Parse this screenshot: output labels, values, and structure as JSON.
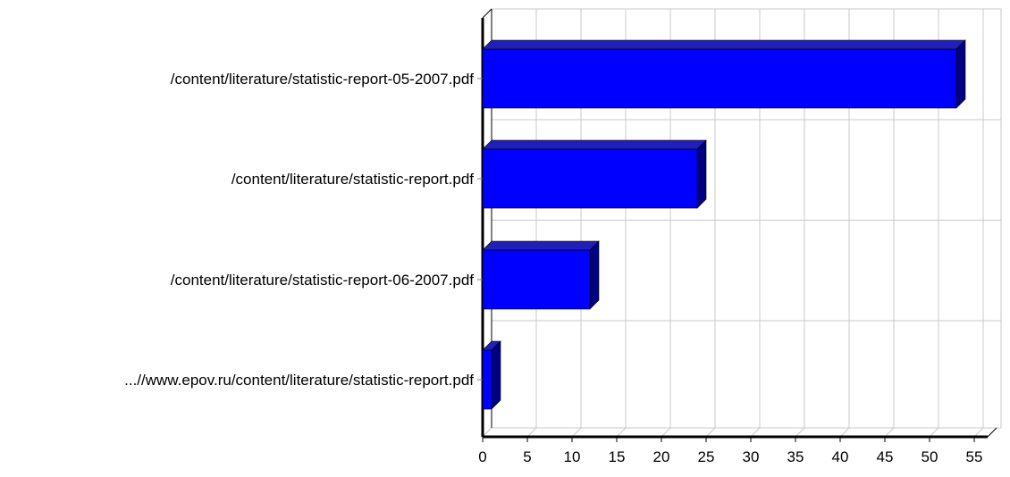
{
  "chart_data": {
    "type": "bar",
    "orientation": "horizontal",
    "style": "3d",
    "categories": [
      "/content/literature/statistic-report-05-2007.pdf",
      "/content/literature/statistic-report.pdf",
      "/content/literature/statistic-report-06-2007.pdf",
      "...//www.epov.ru/content/literature/statistic-report.pdf"
    ],
    "values": [
      53,
      24,
      12,
      1
    ],
    "xlim": [
      0,
      55
    ],
    "xticks": [
      "0",
      "5",
      "10",
      "15",
      "20",
      "25",
      "30",
      "35",
      "40",
      "45",
      "50",
      "55"
    ],
    "grid": true,
    "legend": "none",
    "title": "",
    "xlabel": "",
    "ylabel": "",
    "colors": {
      "bar_front": "#0000FF",
      "bar_top": "#2020B8",
      "bar_side": "#000080",
      "grid": "#C8C8C8",
      "axis": "#000000"
    }
  }
}
